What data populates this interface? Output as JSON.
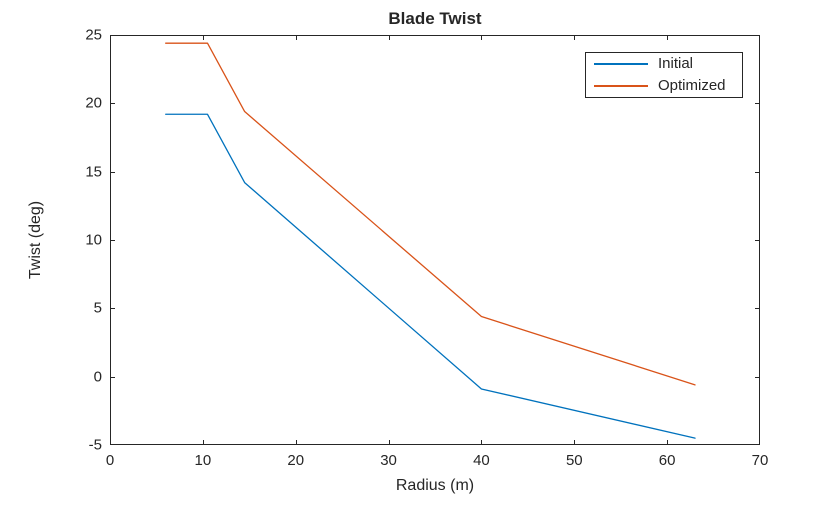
{
  "chart_data": {
    "type": "line",
    "title": "Blade Twist",
    "xlabel": "Radius (m)",
    "ylabel": "Twist (deg)",
    "xlim": [
      0,
      70
    ],
    "ylim": [
      -5,
      25
    ],
    "xticks": [
      0,
      10,
      20,
      30,
      40,
      50,
      60,
      70
    ],
    "yticks": [
      -5,
      0,
      5,
      10,
      15,
      20,
      25
    ],
    "grid": false,
    "legend_position": "upper-right-inside",
    "x": [
      6,
      10.5,
      14.5,
      40,
      63
    ],
    "series": [
      {
        "name": "Initial",
        "color": "#0072BD",
        "values": [
          19.2,
          19.2,
          14.2,
          -0.9,
          -4.5
        ]
      },
      {
        "name": "Optimized",
        "color": "#D95319",
        "values": [
          24.4,
          24.4,
          19.4,
          4.4,
          -0.6
        ]
      }
    ]
  },
  "colors": {
    "axis": "#262626",
    "background": "#FFFFFF"
  }
}
